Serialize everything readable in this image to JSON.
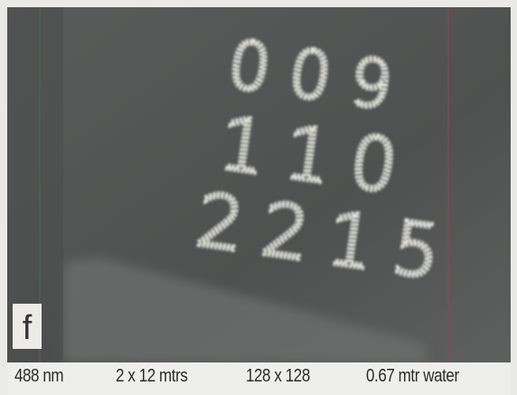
{
  "panel_label": "f",
  "scene": {
    "digit_rows": [
      "009",
      "110",
      "2215"
    ]
  },
  "caption": {
    "items": [
      "488 nm",
      "2 x 12 mtrs",
      "128 x 128",
      "0.67 mtr water"
    ]
  }
}
